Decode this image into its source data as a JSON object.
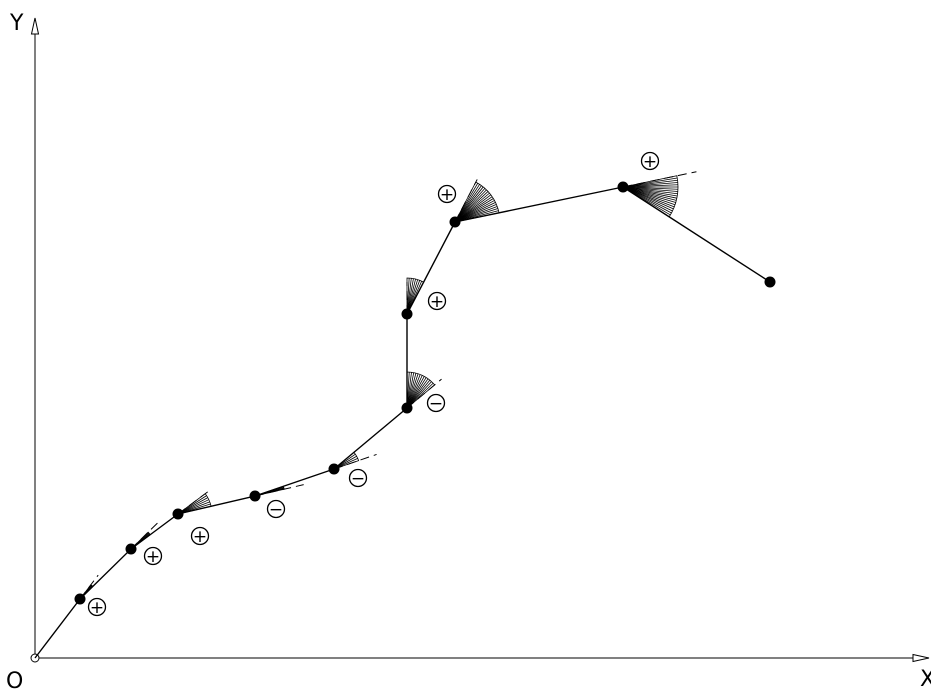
{
  "axes": {
    "y_label": "Y",
    "x_label": "X",
    "origin_label": "O"
  },
  "signs": {
    "plus": "+",
    "minus": "−"
  },
  "vertices": [
    {
      "name": "vertex-origin",
      "sign": null
    },
    {
      "name": "vertex-1",
      "sign": "plus"
    },
    {
      "name": "vertex-2",
      "sign": "plus"
    },
    {
      "name": "vertex-3",
      "sign": "plus"
    },
    {
      "name": "vertex-4",
      "sign": "minus"
    },
    {
      "name": "vertex-5",
      "sign": "minus"
    },
    {
      "name": "vertex-6",
      "sign": "minus"
    },
    {
      "name": "vertex-7",
      "sign": "plus"
    },
    {
      "name": "vertex-8",
      "sign": "plus"
    },
    {
      "name": "vertex-9",
      "sign": "plus"
    },
    {
      "name": "vertex-end",
      "sign": null
    }
  ]
}
